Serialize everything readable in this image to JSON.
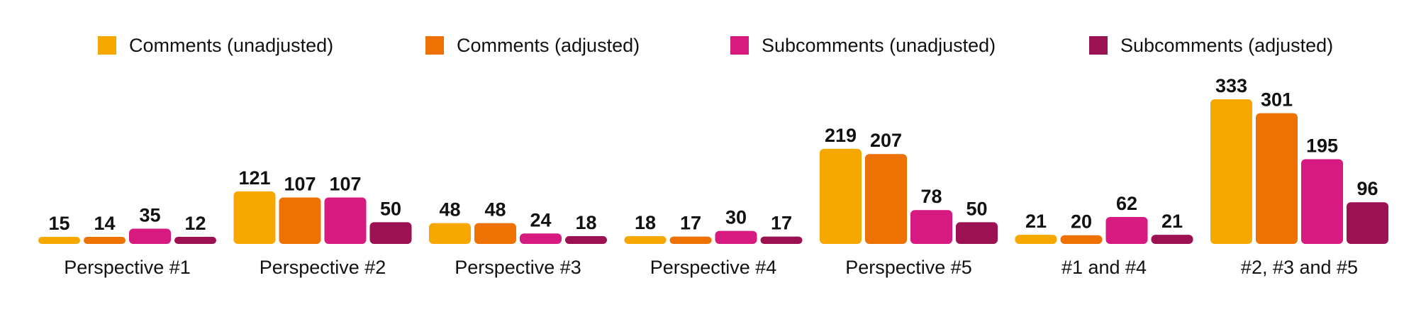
{
  "chart_data": {
    "type": "bar",
    "categories": [
      "Perspective #1",
      "Perspective #2",
      "Perspective #3",
      "Perspective #4",
      "Perspective #5",
      "#1 and #4",
      "#2, #3 and #5"
    ],
    "series": [
      {
        "name": "Comments (unadjusted)",
        "color": "#F7A800",
        "values": [
          15,
          121,
          48,
          18,
          219,
          21,
          333
        ]
      },
      {
        "name": "Comments (adjusted)",
        "color": "#EE7203",
        "values": [
          14,
          107,
          48,
          17,
          207,
          20,
          301
        ]
      },
      {
        "name": "Subcomments (unadjusted)",
        "color": "#D61A7F",
        "values": [
          35,
          107,
          24,
          30,
          78,
          62,
          195
        ]
      },
      {
        "name": "Subcomments (adjusted)",
        "color": "#9B1151",
        "values": [
          12,
          50,
          18,
          17,
          50,
          21,
          96
        ]
      }
    ],
    "ylim": [
      0,
      333
    ],
    "legend_position": "top",
    "grid": false,
    "data_labels": true
  }
}
